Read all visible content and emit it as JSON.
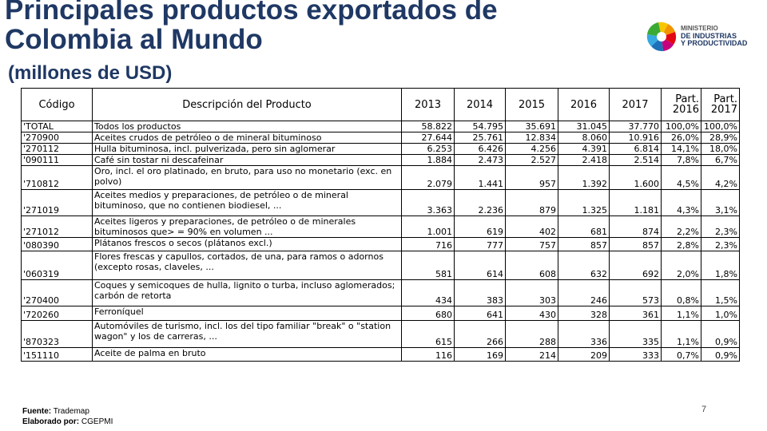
{
  "title_line1": "Principales productos exportados de",
  "title_line2": "Colombia al Mundo",
  "subtitle": "(millones de USD)",
  "logo": {
    "icon": "ministry-logo-icon",
    "line1": "MINISTERIO",
    "line2": "DE INDUSTRIAS",
    "line3": "Y PRODUCTIVIDAD"
  },
  "table": {
    "headers": {
      "code": "Código",
      "desc": "Descripción del Producto",
      "y2013": "2013",
      "y2014": "2014",
      "y2015": "2015",
      "y2016": "2016",
      "y2017": "2017",
      "part2016_a": "Part.",
      "part2016_b": "2016",
      "part2017_a": "Part.",
      "part2017_b": "2017"
    },
    "rows": [
      {
        "code": "'TOTAL",
        "desc": "Todos los productos",
        "v2013": "58.822",
        "v2014": "54.795",
        "v2015": "35.691",
        "v2016": "31.045",
        "v2017": "37.770",
        "p2016": "100,0%",
        "p2017": "100,0%"
      },
      {
        "code": "'270900",
        "desc": "Aceites crudos de petróleo o de mineral bituminoso",
        "v2013": "27.644",
        "v2014": "25.761",
        "v2015": "12.834",
        "v2016": "8.060",
        "v2017": "10.916",
        "p2016": "26,0%",
        "p2017": "28,9%"
      },
      {
        "code": "'270112",
        "desc": "Hulla bituminosa, incl. pulverizada, pero sin aglomerar",
        "v2013": "6.253",
        "v2014": "6.426",
        "v2015": "4.256",
        "v2016": "4.391",
        "v2017": "6.814",
        "p2016": "14,1%",
        "p2017": "18,0%"
      },
      {
        "code": "'090111",
        "desc": "Café sin tostar ni descafeinar",
        "v2013": "1.884",
        "v2014": "2.473",
        "v2015": "2.527",
        "v2016": "2.418",
        "v2017": "2.514",
        "p2016": "7,8%",
        "p2017": "6,7%"
      },
      {
        "code": "'710812",
        "desc": "Oro, incl. el oro platinado, en bruto, para uso no monetario (exc. en polvo)",
        "v2013": "2.079",
        "v2014": "1.441",
        "v2015": "957",
        "v2016": "1.392",
        "v2017": "1.600",
        "p2016": "4,5%",
        "p2017": "4,2%"
      },
      {
        "code": "'271019",
        "desc": "Aceites medios y preparaciones, de petróleo o de mineral bituminoso, que no contienen biodiesel, ...",
        "v2013": "3.363",
        "v2014": "2.236",
        "v2015": "879",
        "v2016": "1.325",
        "v2017": "1.181",
        "p2016": "4,3%",
        "p2017": "3,1%"
      },
      {
        "code": "'271012",
        "desc": "Aceites ligeros y preparaciones, de petróleo o de minerales bituminosos que> = 90% en volumen ...",
        "v2013": "1.001",
        "v2014": "619",
        "v2015": "402",
        "v2016": "681",
        "v2017": "874",
        "p2016": "2,2%",
        "p2017": "2,3%"
      },
      {
        "code": "'080390",
        "desc": "Plátanos frescos o secos (plátanos excl.)",
        "v2013": "716",
        "v2014": "777",
        "v2015": "757",
        "v2016": "857",
        "v2017": "857",
        "p2016": "2,8%",
        "p2017": "2,3%"
      },
      {
        "code": "'060319",
        "desc": "Flores frescas y capullos, cortados, de una, para ramos o adornos (excepto rosas, claveles, ...",
        "v2013": "581",
        "v2014": "614",
        "v2015": "608",
        "v2016": "632",
        "v2017": "692",
        "p2016": "2,0%",
        "p2017": "1,8%"
      },
      {
        "code": "'270400",
        "desc": "Coques y semicoques de hulla, lignito o turba, incluso aglomerados; carbón de retorta",
        "v2013": "434",
        "v2014": "383",
        "v2015": "303",
        "v2016": "246",
        "v2017": "573",
        "p2016": "0,8%",
        "p2017": "1,5%"
      },
      {
        "code": "'720260",
        "desc": "Ferroníquel",
        "v2013": "680",
        "v2014": "641",
        "v2015": "430",
        "v2016": "328",
        "v2017": "361",
        "p2016": "1,1%",
        "p2017": "1,0%"
      },
      {
        "code": "'870323",
        "desc": "Automóviles de turismo, incl. los del tipo familiar \"break\" o \"station wagon\" y los de carreras, ...",
        "v2013": "615",
        "v2014": "266",
        "v2015": "288",
        "v2016": "336",
        "v2017": "335",
        "p2016": "1,1%",
        "p2017": "0,9%"
      },
      {
        "code": "'151110",
        "desc": "Aceite de palma en bruto",
        "v2013": "116",
        "v2014": "169",
        "v2015": "214",
        "v2016": "209",
        "v2017": "333",
        "p2016": "0,7%",
        "p2017": "0,9%"
      }
    ]
  },
  "footer": {
    "source_label": "Fuente:",
    "source_value": "Trademap",
    "author_label": "Elaborado por:",
    "author_value": "CGEPMI"
  },
  "page_number": "7"
}
